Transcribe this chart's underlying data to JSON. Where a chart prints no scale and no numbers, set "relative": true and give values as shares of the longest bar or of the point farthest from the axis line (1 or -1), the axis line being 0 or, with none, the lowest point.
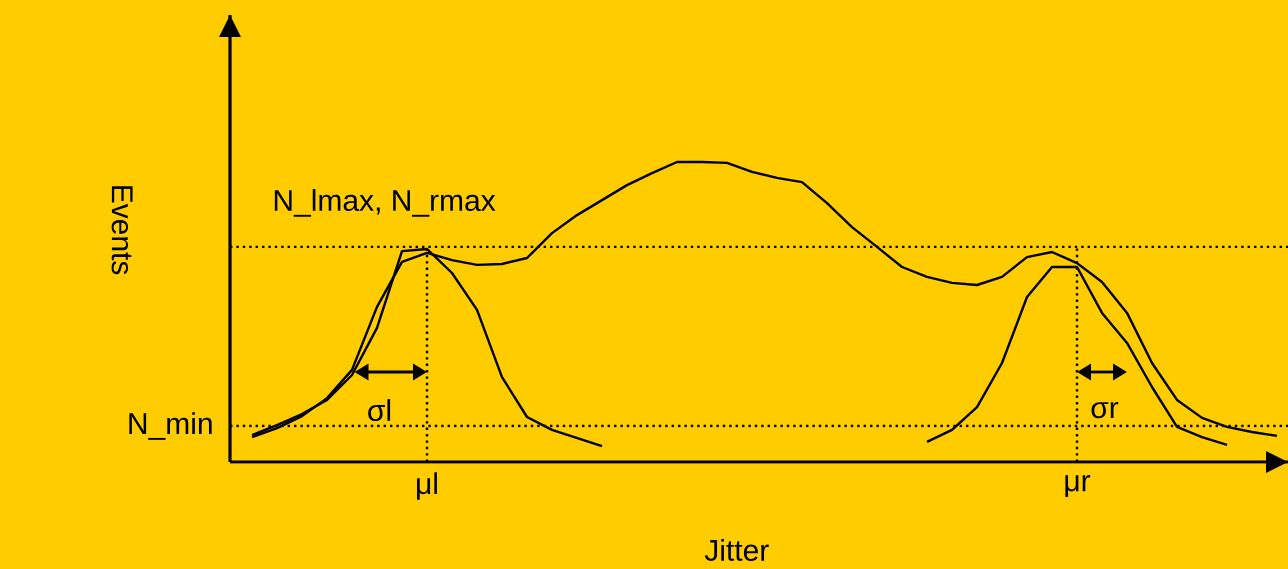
{
  "chart_data": {
    "type": "line",
    "relative": true,
    "xlabel": "Jitter",
    "ylabel": "Events",
    "line_style": "solid",
    "marker": "none",
    "grid": "x",
    "categories": [
      null,
      null,
      null,
      null,
      null,
      null,
      null,
      "μl",
      null,
      null,
      null,
      null,
      null,
      null,
      null,
      null,
      null,
      null,
      null,
      null,
      null,
      null,
      null,
      null,
      null,
      null,
      null,
      null,
      null,
      null,
      null,
      null,
      null,
      "μr",
      null,
      null,
      null,
      null,
      null,
      null,
      null,
      null
    ],
    "series": [
      {
        "color": "#000000",
        "values": [
          0.09,
          0.123,
          0.16,
          0.207,
          0.29,
          0.447,
          0.703,
          0.71,
          0.63,
          0.507,
          0.283,
          0.15,
          0.107,
          0.08,
          0.053,
          null,
          null,
          null,
          null,
          null,
          null,
          null,
          null,
          null,
          null,
          null,
          null,
          null,
          null,
          null,
          null,
          null,
          null,
          null,
          null,
          null,
          null,
          null,
          null,
          null,
          null,
          null
        ]
      },
      {
        "color": "#000000",
        "values": [
          0.083,
          0.113,
          0.153,
          0.213,
          0.307,
          0.517,
          0.667,
          0.697,
          0.673,
          0.657,
          0.66,
          0.68,
          0.763,
          0.823,
          0.873,
          0.923,
          0.963,
          1.0,
          1.0,
          0.997,
          0.967,
          0.947,
          0.933,
          0.863,
          0.783,
          0.717,
          0.65,
          0.617,
          0.597,
          0.59,
          0.617,
          0.683,
          0.7,
          0.663,
          0.6,
          0.497,
          0.33,
          0.207,
          0.147,
          0.117,
          0.1,
          0.087
        ]
      },
      {
        "color": "#000000",
        "values": [
          null,
          null,
          null,
          null,
          null,
          null,
          null,
          null,
          null,
          null,
          null,
          null,
          null,
          null,
          null,
          null,
          null,
          null,
          null,
          null,
          null,
          null,
          null,
          null,
          null,
          null,
          null,
          0.067,
          0.107,
          0.183,
          0.33,
          0.55,
          0.65,
          0.65,
          0.497,
          0.397,
          0.25,
          0.117,
          0.083,
          0.057,
          null,
          null
        ]
      }
    ],
    "ref_lines": [
      {
        "axis": "y",
        "value": 0.717,
        "label": "N_lmax, N_rmax",
        "line_style": "dotted"
      },
      {
        "axis": "y",
        "value": 0.12,
        "label": "N_min",
        "line_style": "dotted"
      }
    ],
    "annotations": [
      "σl",
      "σr"
    ]
  }
}
